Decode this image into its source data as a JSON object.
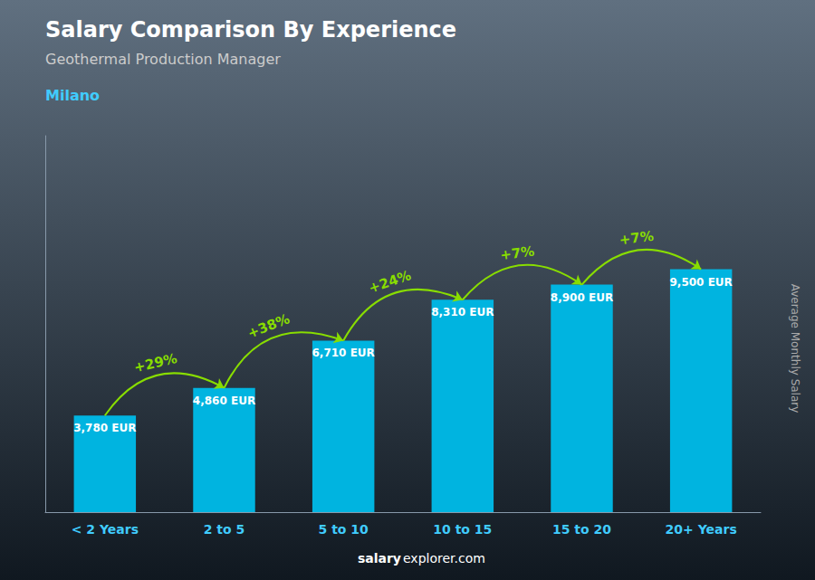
{
  "chart_data": {
    "type": "bar",
    "title": "Salary Comparison By Experience",
    "subtitle": "Geothermal Production Manager",
    "city": "Milano",
    "ylabel": "Average Monthly Salary",
    "watermark": [
      "salary",
      "explorer.com"
    ],
    "categories": [
      "< 2 Years",
      "2 to 5",
      "5 to 10",
      "10 to 15",
      "15 to 20",
      "20+ Years"
    ],
    "values": [
      3780,
      4860,
      6710,
      8310,
      8900,
      9500
    ],
    "value_labels": [
      "3,780 EUR",
      "4,860 EUR",
      "6,710 EUR",
      "8,310 EUR",
      "8,900 EUR",
      "9,500 EUR"
    ],
    "data_labels": true,
    "annotations": [
      null,
      "+29%",
      "+38%",
      "+24%",
      "+7%",
      "+7%"
    ],
    "color": "#00b4e0",
    "ylim": [
      0,
      14725
    ],
    "tick_labels": "x",
    "grid": false
  }
}
